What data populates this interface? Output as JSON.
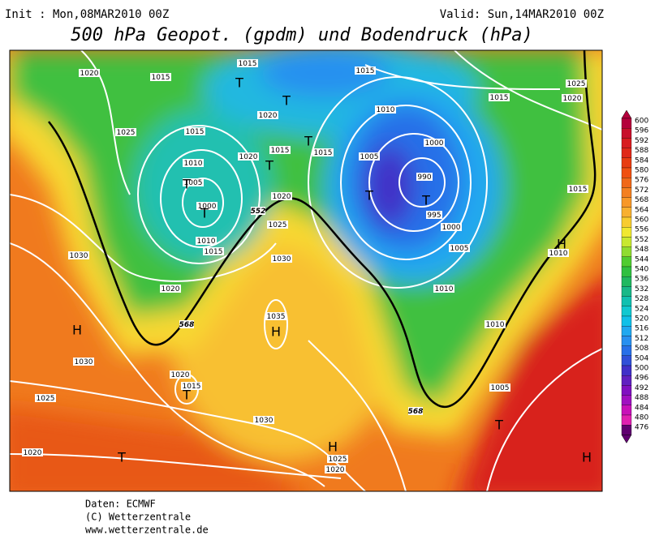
{
  "header": {
    "init": "Init : Mon,08MAR2010 00Z",
    "valid": "Valid: Sun,14MAR2010 00Z",
    "title": "500 hPa Geopot. (gpdm) und Bodendruck (hPa)"
  },
  "map": {
    "isobar_labels": [
      "1020",
      "1015",
      "1015",
      "1015",
      "1015",
      "1025",
      "1020",
      "1020",
      "1010",
      "1015",
      "1015",
      "1025",
      "1015",
      "1010",
      "1005",
      "1000",
      "1010",
      "1015",
      "1020",
      "1005",
      "1000",
      "990",
      "995",
      "1000",
      "1005",
      "1020",
      "1025",
      "1030",
      "1015",
      "1010",
      "1030",
      "1020",
      "1010",
      "1010",
      "1035",
      "1030",
      "1020",
      "1015",
      "1025",
      "1030",
      "1005",
      "1020",
      "1025",
      "1020"
    ],
    "contour_labels": [
      "552",
      "568",
      "568"
    ],
    "pressure_centers": [
      "H",
      "H",
      "H",
      "H",
      "H",
      "T",
      "T",
      "T",
      "T",
      "T",
      "T",
      "T",
      "T",
      "T",
      "T",
      "T"
    ]
  },
  "legend": {
    "values": [
      600,
      596,
      592,
      588,
      584,
      580,
      576,
      572,
      568,
      564,
      560,
      556,
      552,
      548,
      544,
      540,
      536,
      532,
      528,
      524,
      520,
      516,
      512,
      508,
      504,
      500,
      496,
      492,
      488,
      484,
      480,
      476
    ],
    "colors": [
      "#b4003c",
      "#c8102c",
      "#d81c20",
      "#e02818",
      "#e83c10",
      "#f05010",
      "#f06818",
      "#f48020",
      "#f89828",
      "#f8b030",
      "#f8cc30",
      "#f0e830",
      "#c8e830",
      "#90dc30",
      "#50cc30",
      "#30c040",
      "#20b860",
      "#18b888",
      "#10c0b0",
      "#10c8d0",
      "#10c0e8",
      "#20a8f0",
      "#2890f0",
      "#2870e8",
      "#3050d8",
      "#4030c8",
      "#6020c0",
      "#8010c0",
      "#a010c0",
      "#c810b8",
      "#e020b0",
      "#600070"
    ]
  },
  "footer": {
    "line1": "Daten: ECMWF",
    "line2": "(C) Wetterzentrale",
    "line3": "www.wetterzentrale.de"
  }
}
